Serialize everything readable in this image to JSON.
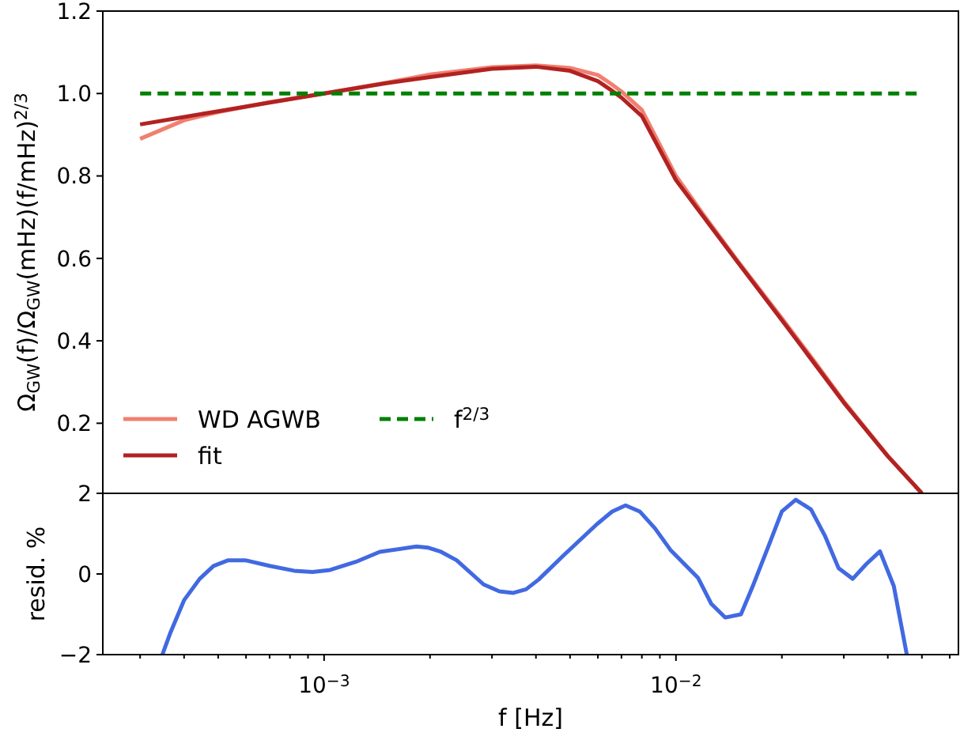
{
  "chart_data": [
    {
      "type": "line",
      "ylabel": "Ω$_{GW}$(f)/Ω$_{GW}$(mHz)(f/mHz)$^{2/3}$",
      "log": "x",
      "xlim": [
        0.000235,
        0.0635
      ],
      "ylim": [
        0.03,
        1.2
      ],
      "yticks": [
        0.2,
        0.4,
        0.6,
        0.8,
        {
          "value": 1,
          "label": "1.0"
        },
        1.2
      ],
      "tick_labels": "y",
      "legend": "bottom left",
      "grid": false,
      "x": [
        0.0003,
        0.0004,
        0.0005,
        0.0007,
        0.001,
        0.0015,
        0.002,
        0.003,
        0.004,
        0.005,
        0.006,
        0.0065,
        0.007,
        0.008,
        0.01,
        0.012,
        0.015,
        0.02,
        0.025,
        0.03,
        0.04,
        0.05
      ],
      "series": [
        {
          "name": "WD AGWB",
          "color": "#f08070",
          "line_style": "solid",
          "values": [
            0.89,
            0.935,
            0.955,
            0.979,
            1.0,
            1.026,
            1.046,
            1.064,
            1.068,
            1.062,
            1.045,
            1.025,
            1.005,
            0.96,
            0.8,
            0.705,
            0.593,
            0.455,
            0.345,
            0.253,
            0.121,
            0.03
          ]
        },
        {
          "name": "fit",
          "color": "#b22222",
          "line_style": "solid",
          "values": [
            0.925,
            0.943,
            0.957,
            0.978,
            1.0,
            1.025,
            1.04,
            1.06,
            1.065,
            1.055,
            1.03,
            1.01,
            0.99,
            0.945,
            0.79,
            0.7,
            0.59,
            0.45,
            0.34,
            0.25,
            0.12,
            0.03
          ]
        },
        {
          "name": "f$^{2/3}$",
          "color": "#008000",
          "line_style": "dashed",
          "values": [
            1.0,
            1.0,
            1.0,
            1.0,
            1.0,
            1.0,
            1.0,
            1.0,
            1.0,
            1.0,
            1.0,
            1.0,
            1.0,
            1.0,
            1.0,
            1.0,
            1.0,
            1.0,
            1.0,
            1.0,
            1.0,
            1.0
          ]
        }
      ]
    },
    {
      "type": "line",
      "xlabel": "f [Hz]",
      "ylabel": "resid. %",
      "log": "x",
      "xlim": [
        0.000235,
        0.0635
      ],
      "ylim": [
        -2,
        2
      ],
      "yticks": [
        {
          "value": -2,
          "label": "−2"
        },
        0,
        2
      ],
      "grid": false,
      "legend": false,
      "xticks": [
        {
          "value": 0.0003,
          "label": null
        },
        {
          "value": 0.0004,
          "label": null
        },
        {
          "value": 0.0005,
          "label": null
        },
        {
          "value": 0.0006,
          "label": null
        },
        {
          "value": 0.0007,
          "label": null
        },
        {
          "value": 0.0008,
          "label": null
        },
        {
          "value": 0.0009,
          "label": null
        },
        {
          "value": 0.001,
          "label": "10$^{−3}$"
        },
        {
          "value": 0.002,
          "label": null
        },
        {
          "value": 0.003,
          "label": null
        },
        {
          "value": 0.004,
          "label": null
        },
        {
          "value": 0.005,
          "label": null
        },
        {
          "value": 0.006,
          "label": null
        },
        {
          "value": 0.007,
          "label": null
        },
        {
          "value": 0.008,
          "label": null
        },
        {
          "value": 0.009,
          "label": null
        },
        {
          "value": 0.01,
          "label": "10$^{−2}$"
        },
        {
          "value": 0.02,
          "label": null
        },
        {
          "value": 0.03,
          "label": null
        },
        {
          "value": 0.04,
          "label": null
        },
        {
          "value": 0.05,
          "label": null
        },
        {
          "value": 0.06,
          "label": null
        }
      ],
      "x": [
        0.000347,
        0.000366,
        0.0004,
        0.000443,
        0.000485,
        0.000534,
        0.000597,
        0.0007,
        0.000822,
        0.000927,
        0.00104,
        0.00123,
        0.00144,
        0.00183,
        0.00198,
        0.00215,
        0.00238,
        0.00284,
        0.00315,
        0.00345,
        0.00375,
        0.00407,
        0.00478,
        0.00597,
        0.00659,
        0.00719,
        0.00789,
        0.00872,
        0.00964,
        0.01156,
        0.0126,
        0.0138,
        0.0153,
        0.0165,
        0.0183,
        0.02,
        0.0219,
        0.0242,
        0.0265,
        0.029,
        0.0318,
        0.0347,
        0.038,
        0.0416,
        0.0453
      ],
      "series": [
        {
          "color": "#4169e1",
          "line_style": "solid",
          "values": [
            -2,
            -1.45,
            -0.65,
            -0.12,
            0.2,
            0.34,
            0.34,
            0.2,
            0.08,
            0.05,
            0.1,
            0.3,
            0.55,
            0.68,
            0.65,
            0.55,
            0.34,
            -0.26,
            -0.43,
            -0.47,
            -0.38,
            -0.14,
            0.45,
            1.24,
            1.55,
            1.7,
            1.55,
            1.13,
            0.6,
            -0.1,
            -0.74,
            -1.08,
            -1.0,
            -0.32,
            0.68,
            1.55,
            1.84,
            1.6,
            0.95,
            0.14,
            -0.12,
            0.24,
            0.56,
            -0.3,
            -2
          ]
        }
      ]
    }
  ]
}
